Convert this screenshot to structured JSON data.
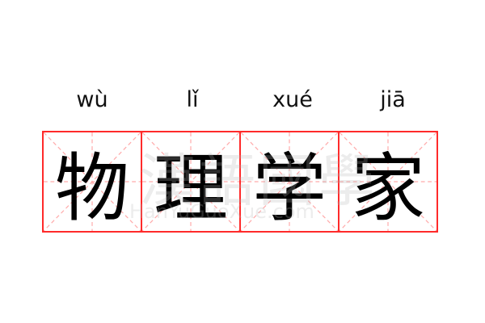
{
  "word": [
    {
      "pinyin": "wù",
      "hanzi": "物"
    },
    {
      "pinyin": "lǐ",
      "hanzi": "理"
    },
    {
      "pinyin": "xué",
      "hanzi": "学"
    },
    {
      "pinyin": "jiā",
      "hanzi": "家"
    }
  ],
  "watermark": {
    "chinese": "漢語國學",
    "latin": "HanYuGuoXue.com"
  },
  "colors": {
    "grid_border": "#ff2a2a",
    "guide_lines": "#ffaaaa",
    "text": "#000000"
  }
}
